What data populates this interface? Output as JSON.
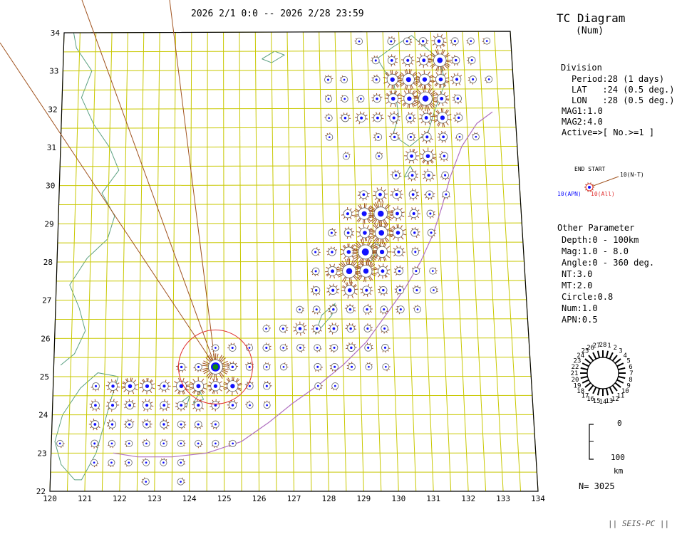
{
  "header": {
    "period_range": "2026 2/1 0:0 -- 2026 2/28 23:59",
    "title": "TC Diagram",
    "subtitle": "(Num)"
  },
  "division": {
    "heading": "Division",
    "lines": [
      "Period:28 (1 days)",
      "LAT   :24 (0.5 deg.)",
      "LON   :28 (0.5 deg.)"
    ],
    "mag_lines": [
      "MAG1:1.0",
      "MAG2:4.0",
      "Active=>[ No.>=1 ]"
    ]
  },
  "legend_glyph": {
    "end_start": "END START",
    "nt_label": "10(N-T)",
    "apn_label": "10(APN)",
    "all_label": "10(All)"
  },
  "other": {
    "heading": "Other Parameter",
    "lines": [
      "Depth:0 - 100km",
      "Mag:1.0 - 8.0",
      "Angle:0 - 360 deg.",
      "NT:3.0",
      "MT:2.0",
      "Circle:0.8",
      "Num:1.0",
      "APN:0.5"
    ]
  },
  "clock": {
    "labels": [
      "1",
      "2",
      "3",
      "4",
      "5",
      "6",
      "7",
      "8",
      "9",
      "10",
      "11",
      "12",
      "13",
      "14",
      "15",
      "16",
      "17",
      "18",
      "19",
      "20",
      "21",
      "22",
      "23",
      "24",
      "25",
      "26",
      "27",
      "28"
    ]
  },
  "depth_scale": {
    "top": "0",
    "bottom": "100",
    "unit": "km"
  },
  "count_label": "N= 3025",
  "footer": "|| SEIS-PC ||",
  "chart_data": {
    "type": "scatter",
    "xlim": [
      120,
      134
    ],
    "ylim": [
      22,
      34
    ],
    "x_ticks": [
      "120",
      "121",
      "122",
      "123",
      "124",
      "125",
      "126",
      "127",
      "128",
      "129",
      "130",
      "131",
      "132",
      "133",
      "134"
    ],
    "y_ticks": [
      "22",
      "23",
      "24",
      "25",
      "26",
      "27",
      "28",
      "29",
      "30",
      "31",
      "32",
      "33",
      "34"
    ],
    "cells": [
      {
        "lon": 120.25,
        "lat": 23.25,
        "n": 2
      },
      {
        "lon": 121.25,
        "lat": 22.75,
        "n": 2
      },
      {
        "lon": 121.25,
        "lat": 23.25,
        "n": 3
      },
      {
        "lon": 121.25,
        "lat": 23.75,
        "n": 5
      },
      {
        "lon": 121.25,
        "lat": 24.25,
        "n": 5
      },
      {
        "lon": 121.25,
        "lat": 24.75,
        "n": 3
      },
      {
        "lon": 121.75,
        "lat": 22.75,
        "n": 2
      },
      {
        "lon": 121.75,
        "lat": 23.25,
        "n": 2
      },
      {
        "lon": 121.75,
        "lat": 23.75,
        "n": 4
      },
      {
        "lon": 121.75,
        "lat": 24.25,
        "n": 6
      },
      {
        "lon": 121.75,
        "lat": 24.75,
        "n": 7
      },
      {
        "lon": 122.25,
        "lat": 22.75,
        "n": 2
      },
      {
        "lon": 122.25,
        "lat": 23.25,
        "n": 2
      },
      {
        "lon": 122.25,
        "lat": 23.75,
        "n": 4
      },
      {
        "lon": 122.25,
        "lat": 24.25,
        "n": 5
      },
      {
        "lon": 122.25,
        "lat": 24.75,
        "n": 10
      },
      {
        "lon": 122.75,
        "lat": 22.25,
        "n": 2
      },
      {
        "lon": 122.75,
        "lat": 22.75,
        "n": 2
      },
      {
        "lon": 122.75,
        "lat": 23.25,
        "n": 2
      },
      {
        "lon": 122.75,
        "lat": 23.75,
        "n": 4
      },
      {
        "lon": 122.75,
        "lat": 24.25,
        "n": 6
      },
      {
        "lon": 122.75,
        "lat": 24.75,
        "n": 9
      },
      {
        "lon": 123.25,
        "lat": 22.75,
        "n": 2
      },
      {
        "lon": 123.25,
        "lat": 23.25,
        "n": 2
      },
      {
        "lon": 123.25,
        "lat": 23.75,
        "n": 4
      },
      {
        "lon": 123.25,
        "lat": 24.25,
        "n": 5
      },
      {
        "lon": 123.25,
        "lat": 24.75,
        "n": 6
      },
      {
        "lon": 123.75,
        "lat": 22.25,
        "n": 2
      },
      {
        "lon": 123.75,
        "lat": 22.75,
        "n": 2
      },
      {
        "lon": 123.75,
        "lat": 23.25,
        "n": 2
      },
      {
        "lon": 123.75,
        "lat": 23.75,
        "n": 3
      },
      {
        "lon": 123.75,
        "lat": 24.25,
        "n": 5
      },
      {
        "lon": 123.75,
        "lat": 24.75,
        "n": 10
      },
      {
        "lon": 123.75,
        "lat": 25.25,
        "n": 4
      },
      {
        "lon": 124.25,
        "lat": 23.25,
        "n": 2
      },
      {
        "lon": 124.25,
        "lat": 23.75,
        "n": 3
      },
      {
        "lon": 124.25,
        "lat": 24.25,
        "n": 6
      },
      {
        "lon": 124.25,
        "lat": 24.75,
        "n": 11
      },
      {
        "lon": 124.25,
        "lat": 25.25,
        "n": 3
      },
      {
        "lon": 124.75,
        "lat": 23.25,
        "n": 2
      },
      {
        "lon": 124.75,
        "lat": 23.75,
        "n": 3
      },
      {
        "lon": 124.75,
        "lat": 24.25,
        "n": 5
      },
      {
        "lon": 124.75,
        "lat": 24.75,
        "n": 9
      },
      {
        "lon": 124.75,
        "lat": 25.25,
        "n": 30
      },
      {
        "lon": 124.75,
        "lat": 25.75,
        "n": 2
      },
      {
        "lon": 125.25,
        "lat": 23.25,
        "n": 2
      },
      {
        "lon": 125.25,
        "lat": 24.25,
        "n": 4
      },
      {
        "lon": 125.25,
        "lat": 24.75,
        "n": 12
      },
      {
        "lon": 125.25,
        "lat": 25.25,
        "n": 4
      },
      {
        "lon": 125.25,
        "lat": 25.75,
        "n": 3
      },
      {
        "lon": 125.75,
        "lat": 24.25,
        "n": 2
      },
      {
        "lon": 125.75,
        "lat": 24.75,
        "n": 3
      },
      {
        "lon": 125.75,
        "lat": 25.25,
        "n": 3
      },
      {
        "lon": 125.75,
        "lat": 25.75,
        "n": 2
      },
      {
        "lon": 126.25,
        "lat": 24.25,
        "n": 2
      },
      {
        "lon": 126.25,
        "lat": 24.75,
        "n": 3
      },
      {
        "lon": 126.25,
        "lat": 25.25,
        "n": 2
      },
      {
        "lon": 126.25,
        "lat": 25.75,
        "n": 3
      },
      {
        "lon": 126.25,
        "lat": 26.25,
        "n": 2
      },
      {
        "lon": 126.75,
        "lat": 25.25,
        "n": 2
      },
      {
        "lon": 126.75,
        "lat": 25.75,
        "n": 2
      },
      {
        "lon": 126.75,
        "lat": 26.25,
        "n": 3
      },
      {
        "lon": 127.25,
        "lat": 25.75,
        "n": 3
      },
      {
        "lon": 127.25,
        "lat": 26.25,
        "n": 7
      },
      {
        "lon": 127.25,
        "lat": 26.75,
        "n": 2
      },
      {
        "lon": 127.75,
        "lat": 24.75,
        "n": 2
      },
      {
        "lon": 127.75,
        "lat": 25.25,
        "n": 3
      },
      {
        "lon": 127.75,
        "lat": 25.75,
        "n": 2
      },
      {
        "lon": 127.75,
        "lat": 26.25,
        "n": 4
      },
      {
        "lon": 127.75,
        "lat": 26.75,
        "n": 3
      },
      {
        "lon": 127.75,
        "lat": 27.25,
        "n": 4
      },
      {
        "lon": 127.75,
        "lat": 27.75,
        "n": 3
      },
      {
        "lon": 128.25,
        "lat": 24.75,
        "n": 2
      },
      {
        "lon": 128.25,
        "lat": 25.25,
        "n": 3
      },
      {
        "lon": 128.25,
        "lat": 25.75,
        "n": 3
      },
      {
        "lon": 128.25,
        "lat": 26.25,
        "n": 5
      },
      {
        "lon": 128.25,
        "lat": 26.75,
        "n": 4
      },
      {
        "lon": 128.25,
        "lat": 27.25,
        "n": 6
      },
      {
        "lon": 128.25,
        "lat": 27.75,
        "n": 8
      },
      {
        "lon": 128.25,
        "lat": 28.25,
        "n": 4
      },
      {
        "lon": 128.75,
        "lat": 25.25,
        "n": 3
      },
      {
        "lon": 128.75,
        "lat": 25.75,
        "n": 4
      },
      {
        "lon": 128.75,
        "lat": 26.25,
        "n": 4
      },
      {
        "lon": 128.75,
        "lat": 26.75,
        "n": 4
      },
      {
        "lon": 128.75,
        "lat": 27.25,
        "n": 10
      },
      {
        "lon": 128.75,
        "lat": 27.75,
        "n": 18
      },
      {
        "lon": 128.75,
        "lat": 28.25,
        "n": 10
      },
      {
        "lon": 128.75,
        "lat": 28.75,
        "n": 5
      },
      {
        "lon": 129.25,
        "lat": 25.25,
        "n": 2
      },
      {
        "lon": 129.25,
        "lat": 25.75,
        "n": 3
      },
      {
        "lon": 129.25,
        "lat": 26.25,
        "n": 3
      },
      {
        "lon": 129.25,
        "lat": 26.75,
        "n": 4
      },
      {
        "lon": 129.25,
        "lat": 27.25,
        "n": 6
      },
      {
        "lon": 129.25,
        "lat": 27.75,
        "n": 15
      },
      {
        "lon": 129.25,
        "lat": 28.25,
        "n": 22
      },
      {
        "lon": 129.25,
        "lat": 28.75,
        "n": 10
      },
      {
        "lon": 129.25,
        "lat": 29.25,
        "n": 14
      },
      {
        "lon": 129.25,
        "lat": 29.75,
        "n": 5
      },
      {
        "lon": 129.75,
        "lat": 25.25,
        "n": 2
      },
      {
        "lon": 129.75,
        "lat": 25.75,
        "n": 3
      },
      {
        "lon": 129.75,
        "lat": 26.25,
        "n": 3
      },
      {
        "lon": 129.75,
        "lat": 26.75,
        "n": 3
      },
      {
        "lon": 129.75,
        "lat": 27.25,
        "n": 4
      },
      {
        "lon": 129.75,
        "lat": 27.75,
        "n": 8
      },
      {
        "lon": 129.75,
        "lat": 28.25,
        "n": 12
      },
      {
        "lon": 129.75,
        "lat": 28.75,
        "n": 16
      },
      {
        "lon": 129.75,
        "lat": 29.25,
        "n": 18
      },
      {
        "lon": 129.75,
        "lat": 29.75,
        "n": 8
      },
      {
        "lon": 130.25,
        "lat": 26.75,
        "n": 3
      },
      {
        "lon": 130.25,
        "lat": 27.25,
        "n": 4
      },
      {
        "lon": 130.25,
        "lat": 27.75,
        "n": 4
      },
      {
        "lon": 130.25,
        "lat": 28.25,
        "n": 6
      },
      {
        "lon": 130.25,
        "lat": 28.75,
        "n": 10
      },
      {
        "lon": 130.25,
        "lat": 29.25,
        "n": 8
      },
      {
        "lon": 130.25,
        "lat": 29.75,
        "n": 6
      },
      {
        "lon": 130.25,
        "lat": 30.25,
        "n": 4
      },
      {
        "lon": 130.75,
        "lat": 26.75,
        "n": 2
      },
      {
        "lon": 130.75,
        "lat": 27.25,
        "n": 3
      },
      {
        "lon": 130.75,
        "lat": 27.75,
        "n": 3
      },
      {
        "lon": 130.75,
        "lat": 28.25,
        "n": 3
      },
      {
        "lon": 130.75,
        "lat": 28.75,
        "n": 4
      },
      {
        "lon": 130.75,
        "lat": 29.25,
        "n": 6
      },
      {
        "lon": 130.75,
        "lat": 29.75,
        "n": 5
      },
      {
        "lon": 130.75,
        "lat": 30.25,
        "n": 5
      },
      {
        "lon": 130.75,
        "lat": 30.75,
        "n": 8
      },
      {
        "lon": 130.75,
        "lat": 31.25,
        "n": 3
      },
      {
        "lon": 131.25,
        "lat": 27.25,
        "n": 2
      },
      {
        "lon": 131.25,
        "lat": 27.75,
        "n": 2
      },
      {
        "lon": 131.25,
        "lat": 28.75,
        "n": 3
      },
      {
        "lon": 131.25,
        "lat": 29.25,
        "n": 3
      },
      {
        "lon": 131.25,
        "lat": 29.75,
        "n": 4
      },
      {
        "lon": 131.25,
        "lat": 30.25,
        "n": 6
      },
      {
        "lon": 131.25,
        "lat": 30.75,
        "n": 10
      },
      {
        "lon": 131.25,
        "lat": 31.25,
        "n": 6
      },
      {
        "lon": 131.75,
        "lat": 29.75,
        "n": 3
      },
      {
        "lon": 131.75,
        "lat": 30.25,
        "n": 3
      },
      {
        "lon": 131.75,
        "lat": 30.75,
        "n": 4
      },
      {
        "lon": 131.75,
        "lat": 31.25,
        "n": 5
      },
      {
        "lon": 131.75,
        "lat": 31.75,
        "n": 12
      },
      {
        "lon": 132.25,
        "lat": 31.25,
        "n": 2
      },
      {
        "lon": 132.25,
        "lat": 31.75,
        "n": 4
      },
      {
        "lon": 129.25,
        "lat": 31.75,
        "n": 6
      },
      {
        "lon": 129.25,
        "lat": 32.25,
        "n": 2
      },
      {
        "lon": 129.75,
        "lat": 31.25,
        "n": 3
      },
      {
        "lon": 129.75,
        "lat": 31.75,
        "n": 5
      },
      {
        "lon": 129.75,
        "lat": 32.25,
        "n": 4
      },
      {
        "lon": 129.75,
        "lat": 32.75,
        "n": 3
      },
      {
        "lon": 129.75,
        "lat": 33.25,
        "n": 3
      },
      {
        "lon": 130.25,
        "lat": 31.25,
        "n": 4
      },
      {
        "lon": 130.25,
        "lat": 31.75,
        "n": 6
      },
      {
        "lon": 130.25,
        "lat": 32.25,
        "n": 10
      },
      {
        "lon": 130.25,
        "lat": 32.75,
        "n": 12
      },
      {
        "lon": 130.25,
        "lat": 33.25,
        "n": 5
      },
      {
        "lon": 130.25,
        "lat": 33.75,
        "n": 3
      },
      {
        "lon": 130.75,
        "lat": 31.75,
        "n": 5
      },
      {
        "lon": 130.75,
        "lat": 32.25,
        "n": 12
      },
      {
        "lon": 130.75,
        "lat": 32.75,
        "n": 14
      },
      {
        "lon": 130.75,
        "lat": 33.25,
        "n": 6
      },
      {
        "lon": 130.75,
        "lat": 33.75,
        "n": 3
      },
      {
        "lon": 131.25,
        "lat": 31.75,
        "n": 8
      },
      {
        "lon": 131.25,
        "lat": 32.25,
        "n": 18
      },
      {
        "lon": 131.25,
        "lat": 32.75,
        "n": 12
      },
      {
        "lon": 131.25,
        "lat": 33.25,
        "n": 8
      },
      {
        "lon": 131.25,
        "lat": 33.75,
        "n": 4
      },
      {
        "lon": 131.75,
        "lat": 32.25,
        "n": 8
      },
      {
        "lon": 131.75,
        "lat": 32.75,
        "n": 10
      },
      {
        "lon": 131.75,
        "lat": 33.25,
        "n": 16
      },
      {
        "lon": 131.75,
        "lat": 33.75,
        "n": 8
      },
      {
        "lon": 132.25,
        "lat": 32.25,
        "n": 4
      },
      {
        "lon": 132.25,
        "lat": 32.75,
        "n": 6
      },
      {
        "lon": 132.25,
        "lat": 33.25,
        "n": 4
      },
      {
        "lon": 132.25,
        "lat": 33.75,
        "n": 3
      },
      {
        "lon": 132.75,
        "lat": 32.75,
        "n": 3
      },
      {
        "lon": 132.75,
        "lat": 33.25,
        "n": 3
      },
      {
        "lon": 132.75,
        "lat": 33.75,
        "n": 2
      },
      {
        "lon": 133.25,
        "lat": 32.75,
        "n": 2
      },
      {
        "lon": 133.25,
        "lat": 33.75,
        "n": 2
      },
      {
        "lon": 129.25,
        "lat": 33.75,
        "n": 2
      },
      {
        "lon": 128.75,
        "lat": 32.25,
        "n": 2
      },
      {
        "lon": 128.75,
        "lat": 32.75,
        "n": 2
      },
      {
        "lon": 128.75,
        "lat": 31.75,
        "n": 4
      },
      {
        "lon": 128.25,
        "lat": 31.75,
        "n": 2
      },
      {
        "lon": 128.25,
        "lat": 31.25,
        "n": 2
      },
      {
        "lon": 132.75,
        "lat": 31.25,
        "n": 2
      },
      {
        "lon": 128.25,
        "lat": 32.25,
        "n": 2
      },
      {
        "lon": 128.25,
        "lat": 32.75,
        "n": 3
      },
      {
        "lon": 129.75,
        "lat": 30.75,
        "n": 2
      },
      {
        "lon": 128.75,
        "lat": 30.75,
        "n": 2
      },
      {
        "lon": 128.75,
        "lat": 29.25,
        "n": 6
      },
      {
        "lon": 128.25,
        "lat": 28.75,
        "n": 3
      },
      {
        "lon": 127.75,
        "lat": 28.25,
        "n": 3
      }
    ]
  },
  "colors": {
    "grid": "#c8c800",
    "coast": "#5aa080",
    "spokes": "#a0521e",
    "trench": "#b070c0",
    "center_dot": "#1010ff",
    "ring": "#e03030"
  }
}
